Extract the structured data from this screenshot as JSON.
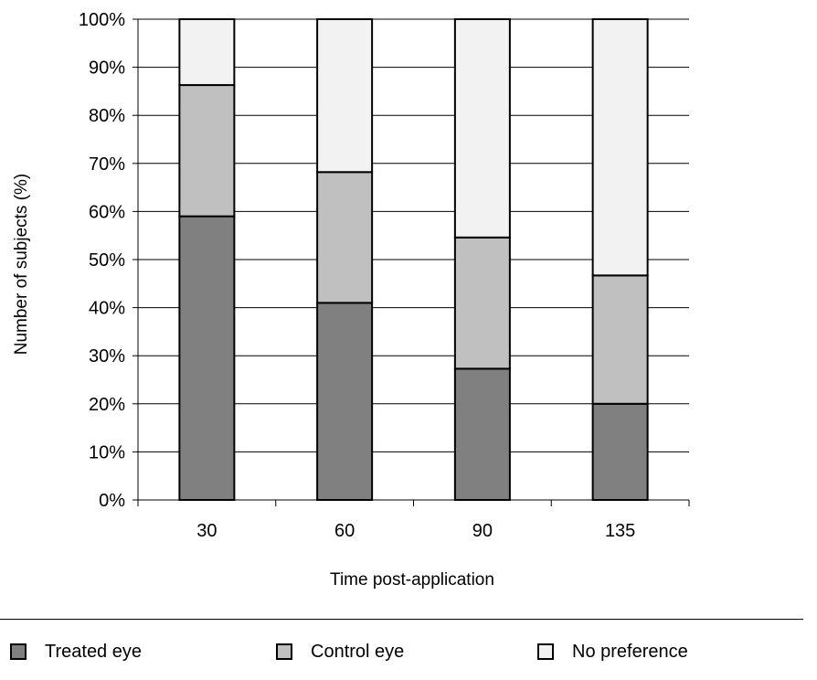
{
  "chart_data": {
    "type": "bar",
    "stacked": true,
    "normalized": true,
    "categories": [
      "30",
      "60",
      "90",
      "135"
    ],
    "series": [
      {
        "name": "Treated eye",
        "color": "#808080",
        "values": [
          59,
          41,
          27.3,
          20
        ]
      },
      {
        "name": "Control eye",
        "color": "#c0c0c0",
        "values": [
          27.3,
          27.2,
          27.3,
          26.7
        ]
      },
      {
        "name": "No preference",
        "color": "#f2f2f2",
        "values": [
          13.7,
          31.8,
          45.4,
          53.3
        ]
      }
    ],
    "xlabel": "Time post-application",
    "ylabel": "Number of subjects (%)",
    "ylim": [
      0,
      100
    ],
    "yticks": [
      "0%",
      "10%",
      "20%",
      "30%",
      "40%",
      "50%",
      "60%",
      "70%",
      "80%",
      "90%",
      "100%"
    ],
    "grid": "horizontal",
    "legend_position": "bottom"
  }
}
